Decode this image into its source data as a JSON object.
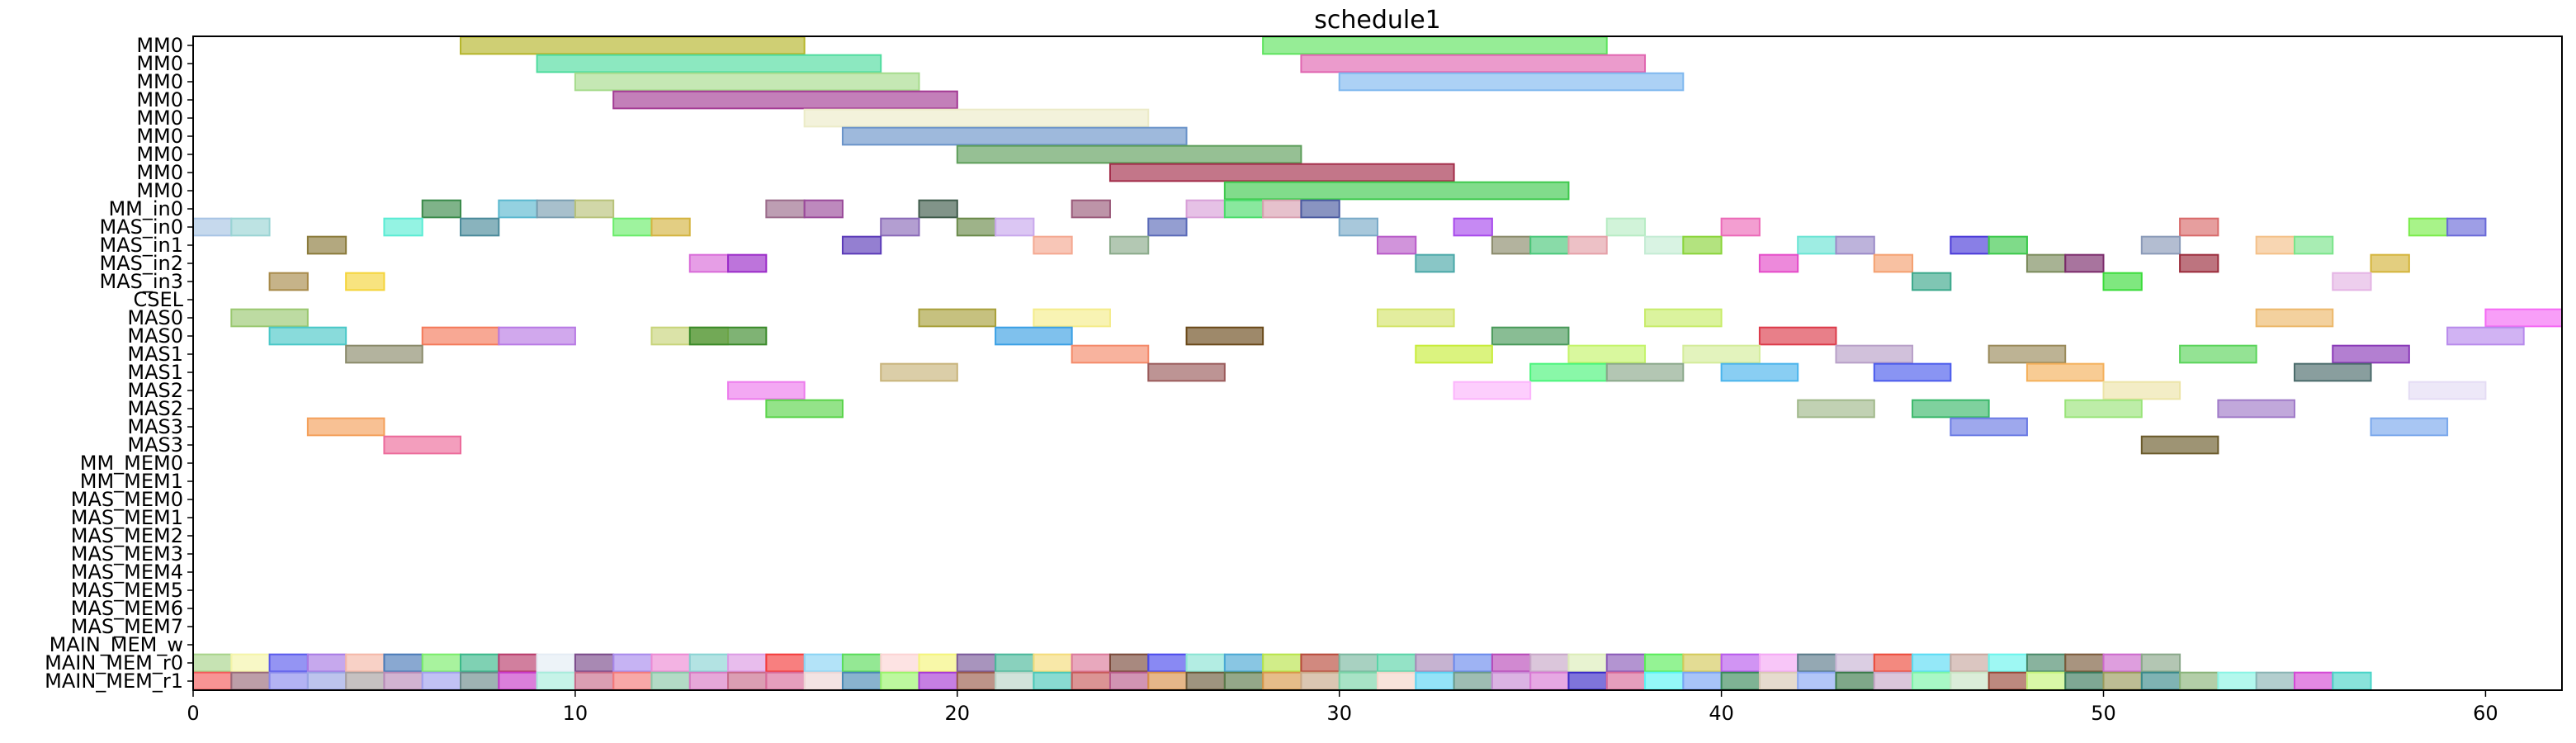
{
  "chart_data": {
    "type": "bar",
    "title": "schedule1",
    "xlabel": "",
    "ylabel": "",
    "xlim": [
      0,
      62
    ],
    "grid": false,
    "x_ticks": [
      0,
      10,
      20,
      30,
      40,
      50,
      60
    ],
    "rows": [
      "MM0",
      "MM0",
      "MM0",
      "MM0",
      "MM0",
      "MM0",
      "MM0",
      "MM0",
      "MM0",
      "MM_in0",
      "MAS_in0",
      "MAS_in1",
      "MAS_in2",
      "MAS_in3",
      "CSEL",
      "MAS0",
      "MAS0",
      "MAS1",
      "MAS1",
      "MAS2",
      "MAS2",
      "MAS3",
      "MAS3",
      "MM_MEM0",
      "MM_MEM1",
      "MAS_MEM0",
      "MAS_MEM1",
      "MAS_MEM2",
      "MAS_MEM3",
      "MAS_MEM4",
      "MAS_MEM5",
      "MAS_MEM6",
      "MAS_MEM7",
      "MAIN_MEM_w",
      "MAIN_MEM_r0",
      "MAIN_MEM_r1"
    ],
    "bars": [
      {
        "row": 0,
        "start": 7,
        "end": 16,
        "color": "#b5b52a"
      },
      {
        "row": 0,
        "start": 28,
        "end": 37,
        "color": "#5ee35e"
      },
      {
        "row": 1,
        "start": 9,
        "end": 18,
        "color": "#4fdc9e"
      },
      {
        "row": 1,
        "start": 29,
        "end": 38,
        "color": "#e066b0"
      },
      {
        "row": 2,
        "start": 10,
        "end": 19,
        "color": "#a6db8c"
      },
      {
        "row": 2,
        "start": 30,
        "end": 39,
        "color": "#7fb8ef"
      },
      {
        "row": 3,
        "start": 11,
        "end": 20,
        "color": "#a33a94"
      },
      {
        "row": 4,
        "start": 16,
        "end": 25,
        "color": "#ecebc8"
      },
      {
        "row": 5,
        "start": 17,
        "end": 26,
        "color": "#6a93c9"
      },
      {
        "row": 6,
        "start": 20,
        "end": 29,
        "color": "#5d9e5a"
      },
      {
        "row": 7,
        "start": 24,
        "end": 33,
        "color": "#a32d4a"
      },
      {
        "row": 8,
        "start": 27,
        "end": 36,
        "color": "#3ec94d"
      },
      {
        "row": 9,
        "start": 6,
        "end": 7,
        "color": "#3a8a4a"
      },
      {
        "row": 9,
        "start": 8,
        "end": 9,
        "color": "#5ab8cf"
      },
      {
        "row": 9,
        "start": 9,
        "end": 10,
        "color": "#7a9eb0"
      },
      {
        "row": 9,
        "start": 10,
        "end": 11,
        "color": "#b8c27a"
      },
      {
        "row": 9,
        "start": 15,
        "end": 16,
        "color": "#9a6a8a"
      },
      {
        "row": 9,
        "start": 16,
        "end": 17,
        "color": "#9a4a9a"
      },
      {
        "row": 9,
        "start": 19,
        "end": 20,
        "color": "#3e5a4a"
      },
      {
        "row": 9,
        "start": 23,
        "end": 24,
        "color": "#9a5a7a"
      },
      {
        "row": 9,
        "start": 26,
        "end": 27,
        "color": "#d8a0d8"
      },
      {
        "row": 9,
        "start": 27,
        "end": 28,
        "color": "#4adc6a"
      },
      {
        "row": 9,
        "start": 28,
        "end": 29,
        "color": "#d8a0b0"
      },
      {
        "row": 9,
        "start": 29,
        "end": 30,
        "color": "#4a5aa0"
      },
      {
        "row": 10,
        "start": 0,
        "end": 1,
        "color": "#a8c4e4"
      },
      {
        "row": 10,
        "start": 1,
        "end": 2,
        "color": "#9ad4d4"
      },
      {
        "row": 10,
        "start": 5,
        "end": 6,
        "color": "#5aecd4"
      },
      {
        "row": 10,
        "start": 7,
        "end": 8,
        "color": "#4a8a9a"
      },
      {
        "row": 10,
        "start": 11,
        "end": 12,
        "color": "#6aec6a"
      },
      {
        "row": 10,
        "start": 12,
        "end": 13,
        "color": "#d4b440"
      },
      {
        "row": 10,
        "start": 18,
        "end": 19,
        "color": "#8a6ab8"
      },
      {
        "row": 10,
        "start": 20,
        "end": 21,
        "color": "#6a8a4a"
      },
      {
        "row": 10,
        "start": 21,
        "end": 22,
        "color": "#c8a8ec"
      },
      {
        "row": 10,
        "start": 25,
        "end": 26,
        "color": "#5a6ab8"
      },
      {
        "row": 10,
        "start": 30,
        "end": 31,
        "color": "#7aaac8"
      },
      {
        "row": 10,
        "start": 33,
        "end": 34,
        "color": "#a84aec"
      },
      {
        "row": 10,
        "start": 37,
        "end": 38,
        "color": "#b8ecc4"
      },
      {
        "row": 10,
        "start": 40,
        "end": 41,
        "color": "#ec6ab8"
      },
      {
        "row": 10,
        "start": 52,
        "end": 53,
        "color": "#d86a6a"
      },
      {
        "row": 10,
        "start": 58,
        "end": 59,
        "color": "#7aec4a"
      },
      {
        "row": 10,
        "start": 59,
        "end": 60,
        "color": "#6a6ad8"
      },
      {
        "row": 11,
        "start": 3,
        "end": 4,
        "color": "#8a7a3a"
      },
      {
        "row": 11,
        "start": 17,
        "end": 18,
        "color": "#5a3ab8"
      },
      {
        "row": 11,
        "start": 22,
        "end": 23,
        "color": "#f4a890"
      },
      {
        "row": 11,
        "start": 24,
        "end": 25,
        "color": "#8aaa8a"
      },
      {
        "row": 11,
        "start": 31,
        "end": 32,
        "color": "#b85ac8"
      },
      {
        "row": 11,
        "start": 34,
        "end": 35,
        "color": "#8a8a6a"
      },
      {
        "row": 11,
        "start": 35,
        "end": 36,
        "color": "#4ac87a"
      },
      {
        "row": 11,
        "start": 36,
        "end": 37,
        "color": "#e4a0a8"
      },
      {
        "row": 11,
        "start": 38,
        "end": 39,
        "color": "#c4ecd4"
      },
      {
        "row": 11,
        "start": 39,
        "end": 40,
        "color": "#8ad43a"
      },
      {
        "row": 11,
        "start": 42,
        "end": 43,
        "color": "#6ae4d4"
      },
      {
        "row": 11,
        "start": 43,
        "end": 44,
        "color": "#9a8ac8"
      },
      {
        "row": 11,
        "start": 46,
        "end": 47,
        "color": "#4a3ad8"
      },
      {
        "row": 11,
        "start": 47,
        "end": 48,
        "color": "#3ac84a"
      },
      {
        "row": 11,
        "start": 51,
        "end": 52,
        "color": "#8a9ab8"
      },
      {
        "row": 11,
        "start": 54,
        "end": 55,
        "color": "#f4c088"
      },
      {
        "row": 11,
        "start": 55,
        "end": 56,
        "color": "#7ae48a"
      },
      {
        "row": 12,
        "start": 13,
        "end": 14,
        "color": "#d86ad8"
      },
      {
        "row": 12,
        "start": 14,
        "end": 15,
        "color": "#9a2ac8"
      },
      {
        "row": 12,
        "start": 32,
        "end": 33,
        "color": "#4aa8a8"
      },
      {
        "row": 12,
        "start": 41,
        "end": 42,
        "color": "#e44ac8"
      },
      {
        "row": 12,
        "start": 44,
        "end": 45,
        "color": "#f4a070"
      },
      {
        "row": 12,
        "start": 48,
        "end": 49,
        "color": "#7a8a5a"
      },
      {
        "row": 12,
        "start": 49,
        "end": 50,
        "color": "#7a2a6a"
      },
      {
        "row": 12,
        "start": 52,
        "end": 53,
        "color": "#9a2a3a"
      },
      {
        "row": 12,
        "start": 57,
        "end": 58,
        "color": "#d4b43a"
      },
      {
        "row": 13,
        "start": 2,
        "end": 3,
        "color": "#a88a4a"
      },
      {
        "row": 13,
        "start": 4,
        "end": 5,
        "color": "#f4d43a"
      },
      {
        "row": 13,
        "start": 45,
        "end": 46,
        "color": "#3aa88a"
      },
      {
        "row": 13,
        "start": 50,
        "end": 51,
        "color": "#3adc3a"
      },
      {
        "row": 13,
        "start": 56,
        "end": 57,
        "color": "#e4b4e4"
      },
      {
        "row": 15,
        "start": 1,
        "end": 3,
        "color": "#9ac870"
      },
      {
        "row": 15,
        "start": 19,
        "end": 21,
        "color": "#a8a03a"
      },
      {
        "row": 15,
        "start": 22,
        "end": 24,
        "color": "#f4ec8a"
      },
      {
        "row": 15,
        "start": 31,
        "end": 33,
        "color": "#d4e46a"
      },
      {
        "row": 15,
        "start": 38,
        "end": 40,
        "color": "#c8ec6a"
      },
      {
        "row": 15,
        "start": 54,
        "end": 56,
        "color": "#ecb86a"
      },
      {
        "row": 15,
        "start": 60,
        "end": 62,
        "color": "#f46af4"
      },
      {
        "row": 16,
        "start": 2,
        "end": 4,
        "color": "#4ac8c8"
      },
      {
        "row": 16,
        "start": 6,
        "end": 8,
        "color": "#f47a5a"
      },
      {
        "row": 16,
        "start": 8,
        "end": 10,
        "color": "#b87ae4"
      },
      {
        "row": 16,
        "start": 12,
        "end": 14,
        "color": "#c8d47a"
      },
      {
        "row": 16,
        "start": 13,
        "end": 15,
        "color": "#3a8a2a"
      },
      {
        "row": 16,
        "start": 21,
        "end": 23,
        "color": "#3aa0e4"
      },
      {
        "row": 16,
        "start": 26,
        "end": 28,
        "color": "#6a4a1a"
      },
      {
        "row": 16,
        "start": 34,
        "end": 36,
        "color": "#4a9a5a"
      },
      {
        "row": 16,
        "start": 41,
        "end": 43,
        "color": "#dc3a4a"
      },
      {
        "row": 16,
        "start": 59,
        "end": 61,
        "color": "#b88aec"
      },
      {
        "row": 17,
        "start": 4,
        "end": 6,
        "color": "#8a8a6a"
      },
      {
        "row": 17,
        "start": 23,
        "end": 25,
        "color": "#f48a6a"
      },
      {
        "row": 17,
        "start": 32,
        "end": 34,
        "color": "#c8ec3a"
      },
      {
        "row": 17,
        "start": 36,
        "end": 38,
        "color": "#c4f46a"
      },
      {
        "row": 17,
        "start": 39,
        "end": 41,
        "color": "#d4ec9a"
      },
      {
        "row": 17,
        "start": 43,
        "end": 45,
        "color": "#b8a0c8"
      },
      {
        "row": 17,
        "start": 47,
        "end": 49,
        "color": "#9a8a5a"
      },
      {
        "row": 17,
        "start": 52,
        "end": 54,
        "color": "#5ad45a"
      },
      {
        "row": 17,
        "start": 56,
        "end": 58,
        "color": "#8a3ab8"
      },
      {
        "row": 18,
        "start": 18,
        "end": 20,
        "color": "#c8b47a"
      },
      {
        "row": 18,
        "start": 25,
        "end": 27,
        "color": "#9a5a5a"
      },
      {
        "row": 18,
        "start": 35,
        "end": 37,
        "color": "#4af47a"
      },
      {
        "row": 18,
        "start": 37,
        "end": 39,
        "color": "#8aa88a"
      },
      {
        "row": 18,
        "start": 40,
        "end": 42,
        "color": "#4ab4ec"
      },
      {
        "row": 18,
        "start": 44,
        "end": 46,
        "color": "#4a5aec"
      },
      {
        "row": 18,
        "start": 48,
        "end": 50,
        "color": "#f4b05a"
      },
      {
        "row": 18,
        "start": 55,
        "end": 57,
        "color": "#4a6a6a"
      },
      {
        "row": 19,
        "start": 14,
        "end": 16,
        "color": "#ec7aec"
      },
      {
        "row": 19,
        "start": 33,
        "end": 35,
        "color": "#fcb4fc"
      },
      {
        "row": 19,
        "start": 50,
        "end": 52,
        "color": "#ece4a8"
      },
      {
        "row": 19,
        "start": 58,
        "end": 60,
        "color": "#e4dcf4"
      },
      {
        "row": 20,
        "start": 15,
        "end": 17,
        "color": "#5ad44a"
      },
      {
        "row": 20,
        "start": 42,
        "end": 44,
        "color": "#a0b88a"
      },
      {
        "row": 20,
        "start": 45,
        "end": 47,
        "color": "#3ab86a"
      },
      {
        "row": 20,
        "start": 49,
        "end": 51,
        "color": "#9ae47a"
      },
      {
        "row": 20,
        "start": 53,
        "end": 55,
        "color": "#a07ac8"
      },
      {
        "row": 21,
        "start": 3,
        "end": 5,
        "color": "#f4a05a"
      },
      {
        "row": 21,
        "start": 46,
        "end": 48,
        "color": "#6a7ae4"
      },
      {
        "row": 21,
        "start": 57,
        "end": 59,
        "color": "#7aa8ec"
      },
      {
        "row": 22,
        "start": 5,
        "end": 7,
        "color": "#ec6a9a"
      },
      {
        "row": 22,
        "start": 51,
        "end": 53,
        "color": "#6a5a2a"
      }
    ],
    "mem_rows": [
      {
        "row": 34,
        "colors": [
          "#a8d48a",
          "#f4f4a8",
          "#5a5aec",
          "#a87ae4",
          "#f4b8a8",
          "#4a7ab8",
          "#7aec6a",
          "#3ab88a",
          "#b83a6a",
          "#e4ecf4",
          "#7a4a8a",
          "#a88aec",
          "#ec8ad4",
          "#8ad4d4",
          "#dc9ae4",
          "#f43a3a",
          "#8ad4f4",
          "#5adc5a",
          "#fcd4d4",
          "#f4f47a",
          "#7a5a9a",
          "#4ab89a",
          "#f4dc7a",
          "#dc7a9a",
          "#7a4a3a",
          "#4a4aec",
          "#8ae4d4",
          "#4aa8d4",
          "#b8e44a",
          "#b84a3a",
          "#7ab8a0",
          "#5ad4a8",
          "#a88ab8",
          "#6a8aec",
          "#b84ab8",
          "#c8a8c8",
          "#dcecb8",
          "#8a5ab8",
          "#5aec5a",
          "#d4ca5a",
          "#b85aec",
          "#f4a8f4",
          "#5a7a8a",
          "#c8b4d4",
          "#ec4a3a",
          "#5adcf4",
          "#c8a8a0",
          "#6af4ec",
          "#4a8a6a",
          "#7a5a3a",
          "#cc6acc",
          "#8aa88a"
        ]
      },
      {
        "row": 35,
        "colors": [
          "#f45a5a",
          "#9a6a7a",
          "#8a8aec",
          "#9aa4e4",
          "#a8a0a0",
          "#b88ab8",
          "#a0a0ec",
          "#6a8a8a",
          "#c83ac8",
          "#a8ecdc",
          "#c86a8a",
          "#f47a7a",
          "#8ac8a8",
          "#d87ac4",
          "#c86a8a",
          "#d86a9a",
          "#ecd4d4",
          "#4a8ab4",
          "#9af46a",
          "#a83ad4",
          "#9a5a4a",
          "#b8d4c8",
          "#4ac8b8",
          "#c85a5a",
          "#b85a8a",
          "#d8904a",
          "#6a5a3a",
          "#5a7a4a",
          "#d8984a",
          "#c8a888",
          "#7ad4a8",
          "#f4d4c8",
          "#5ad4f4",
          "#6a9a8a",
          "#c88ad4",
          "#d87ad4",
          "#3a2ac8",
          "#d86a9a",
          "#5af4f4",
          "#7aa4f4",
          "#3a8a5a",
          "#d8c8b4",
          "#8aa8f4",
          "#3a7a4a",
          "#c8a8c8",
          "#7af4a8",
          "#c8e4c4",
          "#9a4a3a",
          "#c4f47a",
          "#3a7a5a",
          "#9a9a5a",
          "#3a8a8a",
          "#8ab47a",
          "#8af4e4",
          "#8ab4b4",
          "#d44ad4",
          "#4ad4c8"
        ]
      }
    ]
  }
}
